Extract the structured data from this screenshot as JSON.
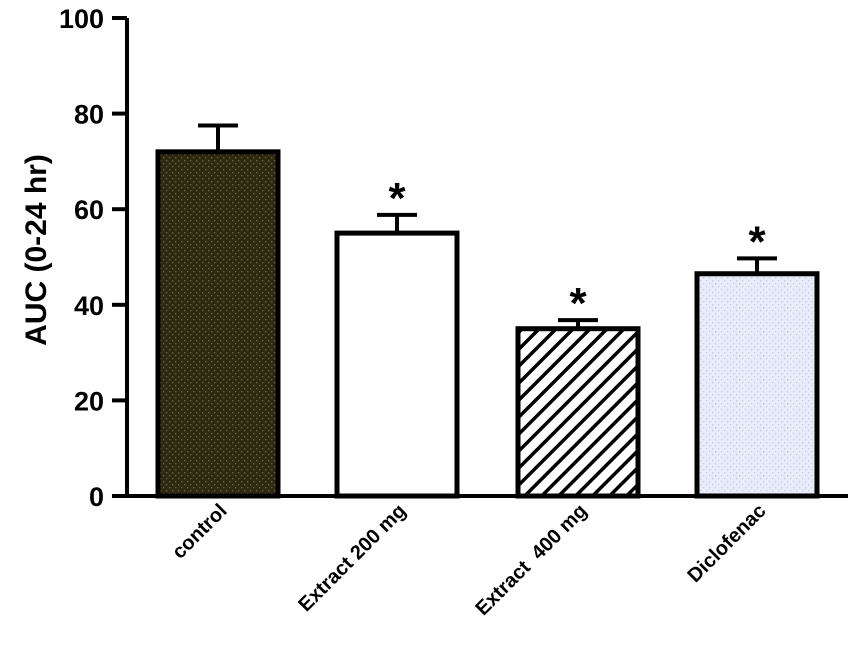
{
  "chart_data": {
    "type": "bar",
    "title": "",
    "xlabel": "",
    "ylabel": "AUC (0-24 hr)",
    "ylim": [
      0,
      100
    ],
    "yticks": [
      0,
      20,
      40,
      60,
      80,
      100
    ],
    "categories": [
      "control",
      "Extract 200 mg",
      "Extract  400 mg",
      "Diclofenac"
    ],
    "values": [
      72,
      55,
      35,
      46.5
    ],
    "errors": [
      5.5,
      3.8,
      1.8,
      3.2
    ],
    "significance": [
      "",
      "*",
      "*",
      "*"
    ],
    "fills": [
      "dark-dotted",
      "white",
      "diagonal-hatch",
      "light-dotted"
    ],
    "colors": {
      "control": "#2e2a12",
      "extract200": "#ffffff",
      "extract400": "#000000",
      "diclofenac": "#e8ebf8"
    },
    "grid": false,
    "legend": "none"
  }
}
